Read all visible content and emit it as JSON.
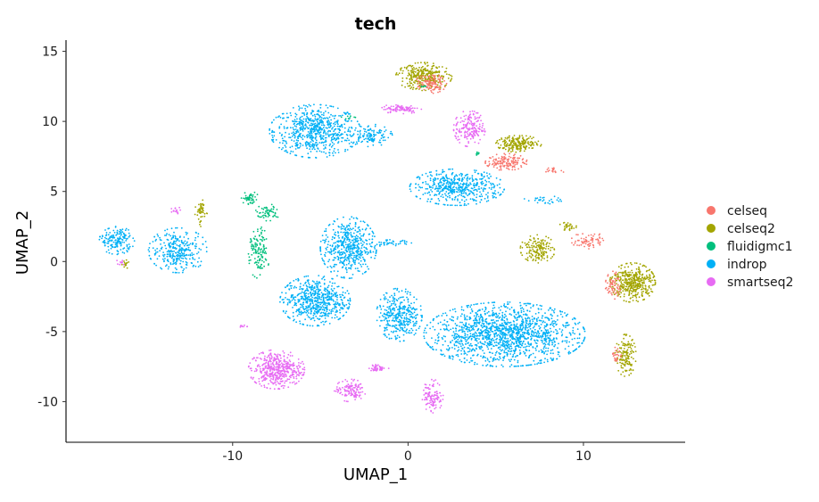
{
  "chart_data": {
    "type": "scatter",
    "title": "tech",
    "xlabel": "UMAP_1",
    "ylabel": "UMAP_2",
    "xlim": [
      -19.5,
      15.8
    ],
    "ylim": [
      -12.9,
      15.8
    ],
    "xticks": [
      -10,
      0,
      10
    ],
    "yticks": [
      -10,
      -5,
      0,
      5,
      10,
      15
    ],
    "grid": false,
    "legend_position": "right",
    "series": [
      {
        "name": "celseq",
        "color": "#F8766D"
      },
      {
        "name": "celseq2",
        "color": "#A3A500"
      },
      {
        "name": "fluidigmc1",
        "color": "#00BF7D"
      },
      {
        "name": "indrop",
        "color": "#00B0F6"
      },
      {
        "name": "smartseq2",
        "color": "#E76BF3"
      }
    ],
    "clusters": [
      {
        "series": "indrop",
        "cx": -5.3,
        "cy": 9.3,
        "rx": 2.6,
        "ry": 1.9,
        "n": 650
      },
      {
        "series": "indrop",
        "cx": -2.2,
        "cy": 9.0,
        "rx": 1.3,
        "ry": 0.8,
        "n": 120
      },
      {
        "series": "indrop",
        "cx": 2.8,
        "cy": 5.3,
        "rx": 2.7,
        "ry": 1.3,
        "n": 500
      },
      {
        "series": "indrop",
        "cx": -3.4,
        "cy": 1.0,
        "rx": 1.6,
        "ry": 2.2,
        "n": 500
      },
      {
        "series": "indrop",
        "cx": -5.3,
        "cy": -2.8,
        "rx": 2.0,
        "ry": 1.8,
        "n": 600
      },
      {
        "series": "indrop",
        "cx": -0.5,
        "cy": -3.8,
        "rx": 1.3,
        "ry": 1.9,
        "n": 350
      },
      {
        "series": "indrop",
        "cx": 5.5,
        "cy": -5.2,
        "rx": 4.6,
        "ry": 2.3,
        "n": 1500
      },
      {
        "series": "indrop",
        "cx": -13.1,
        "cy": 0.8,
        "rx": 1.7,
        "ry": 1.6,
        "n": 300
      },
      {
        "series": "indrop",
        "cx": -16.6,
        "cy": 1.5,
        "rx": 1.0,
        "ry": 1.0,
        "n": 170
      },
      {
        "series": "indrop",
        "cx": -1.0,
        "cy": 1.3,
        "rx": 1.2,
        "ry": 0.25,
        "n": 40
      },
      {
        "series": "indrop",
        "cx": 7.7,
        "cy": 4.4,
        "rx": 1.1,
        "ry": 0.3,
        "n": 30
      },
      {
        "series": "celseq2",
        "cx": 0.9,
        "cy": 13.2,
        "rx": 1.6,
        "ry": 1.0,
        "n": 300
      },
      {
        "series": "celseq2",
        "cx": 6.3,
        "cy": 8.4,
        "rx": 1.3,
        "ry": 0.6,
        "n": 200
      },
      {
        "series": "celseq2",
        "cx": 7.4,
        "cy": 0.9,
        "rx": 1.0,
        "ry": 1.0,
        "n": 160
      },
      {
        "series": "celseq2",
        "cx": 12.8,
        "cy": -1.5,
        "rx": 1.3,
        "ry": 1.4,
        "n": 400
      },
      {
        "series": "celseq2",
        "cx": 12.4,
        "cy": -6.7,
        "rx": 0.6,
        "ry": 1.5,
        "n": 140
      },
      {
        "series": "celseq2",
        "cx": -11.8,
        "cy": 3.5,
        "rx": 0.35,
        "ry": 1.0,
        "n": 50
      },
      {
        "series": "celseq2",
        "cx": -16.1,
        "cy": -0.2,
        "rx": 0.25,
        "ry": 0.35,
        "n": 15
      },
      {
        "series": "celseq2",
        "cx": 9.1,
        "cy": 2.5,
        "rx": 0.5,
        "ry": 0.3,
        "n": 30
      },
      {
        "series": "celseq",
        "cx": 1.3,
        "cy": 12.7,
        "rx": 0.9,
        "ry": 0.7,
        "n": 110
      },
      {
        "series": "celseq",
        "cx": 5.6,
        "cy": 7.1,
        "rx": 1.2,
        "ry": 0.6,
        "n": 140
      },
      {
        "series": "celseq",
        "cx": 10.3,
        "cy": 1.5,
        "rx": 1.0,
        "ry": 0.6,
        "n": 70
      },
      {
        "series": "celseq",
        "cx": 11.7,
        "cy": -1.7,
        "rx": 0.45,
        "ry": 1.0,
        "n": 60
      },
      {
        "series": "celseq",
        "cx": 11.9,
        "cy": -6.7,
        "rx": 0.3,
        "ry": 0.6,
        "n": 25
      },
      {
        "series": "celseq",
        "cx": 8.3,
        "cy": 6.5,
        "rx": 0.7,
        "ry": 0.2,
        "n": 20
      },
      {
        "series": "fluidigmc1",
        "cx": -9.0,
        "cy": 4.5,
        "rx": 0.5,
        "ry": 0.5,
        "n": 50
      },
      {
        "series": "fluidigmc1",
        "cx": -8.0,
        "cy": 3.5,
        "rx": 0.7,
        "ry": 0.6,
        "n": 60
      },
      {
        "series": "fluidigmc1",
        "cx": -8.5,
        "cy": 0.6,
        "rx": 0.6,
        "ry": 1.9,
        "n": 130
      },
      {
        "series": "fluidigmc1",
        "cx": 3.9,
        "cy": 7.6,
        "rx": 0.15,
        "ry": 0.3,
        "n": 10
      },
      {
        "series": "fluidigmc1",
        "cx": -3.4,
        "cy": 10.3,
        "rx": 0.4,
        "ry": 0.15,
        "n": 8
      },
      {
        "series": "fluidigmc1",
        "cx": 0.9,
        "cy": 12.5,
        "rx": 0.3,
        "ry": 0.2,
        "n": 6
      },
      {
        "series": "smartseq2",
        "cx": 3.5,
        "cy": 9.5,
        "rx": 0.9,
        "ry": 1.3,
        "n": 180
      },
      {
        "series": "smartseq2",
        "cx": -0.4,
        "cy": 10.9,
        "rx": 1.2,
        "ry": 0.35,
        "n": 90
      },
      {
        "series": "smartseq2",
        "cx": -7.5,
        "cy": -7.7,
        "rx": 1.6,
        "ry": 1.4,
        "n": 450
      },
      {
        "series": "smartseq2",
        "cx": -3.3,
        "cy": -9.2,
        "rx": 0.9,
        "ry": 0.8,
        "n": 120
      },
      {
        "series": "smartseq2",
        "cx": 1.4,
        "cy": -9.6,
        "rx": 0.6,
        "ry": 1.2,
        "n": 110
      },
      {
        "series": "smartseq2",
        "cx": -1.7,
        "cy": -7.6,
        "rx": 0.6,
        "ry": 0.25,
        "n": 40
      },
      {
        "series": "smartseq2",
        "cx": -13.2,
        "cy": 3.6,
        "rx": 0.35,
        "ry": 0.3,
        "n": 15
      },
      {
        "series": "smartseq2",
        "cx": -16.4,
        "cy": -0.1,
        "rx": 0.3,
        "ry": 0.3,
        "n": 10
      },
      {
        "series": "smartseq2",
        "cx": -9.4,
        "cy": -4.6,
        "rx": 0.3,
        "ry": 0.15,
        "n": 8
      }
    ]
  }
}
